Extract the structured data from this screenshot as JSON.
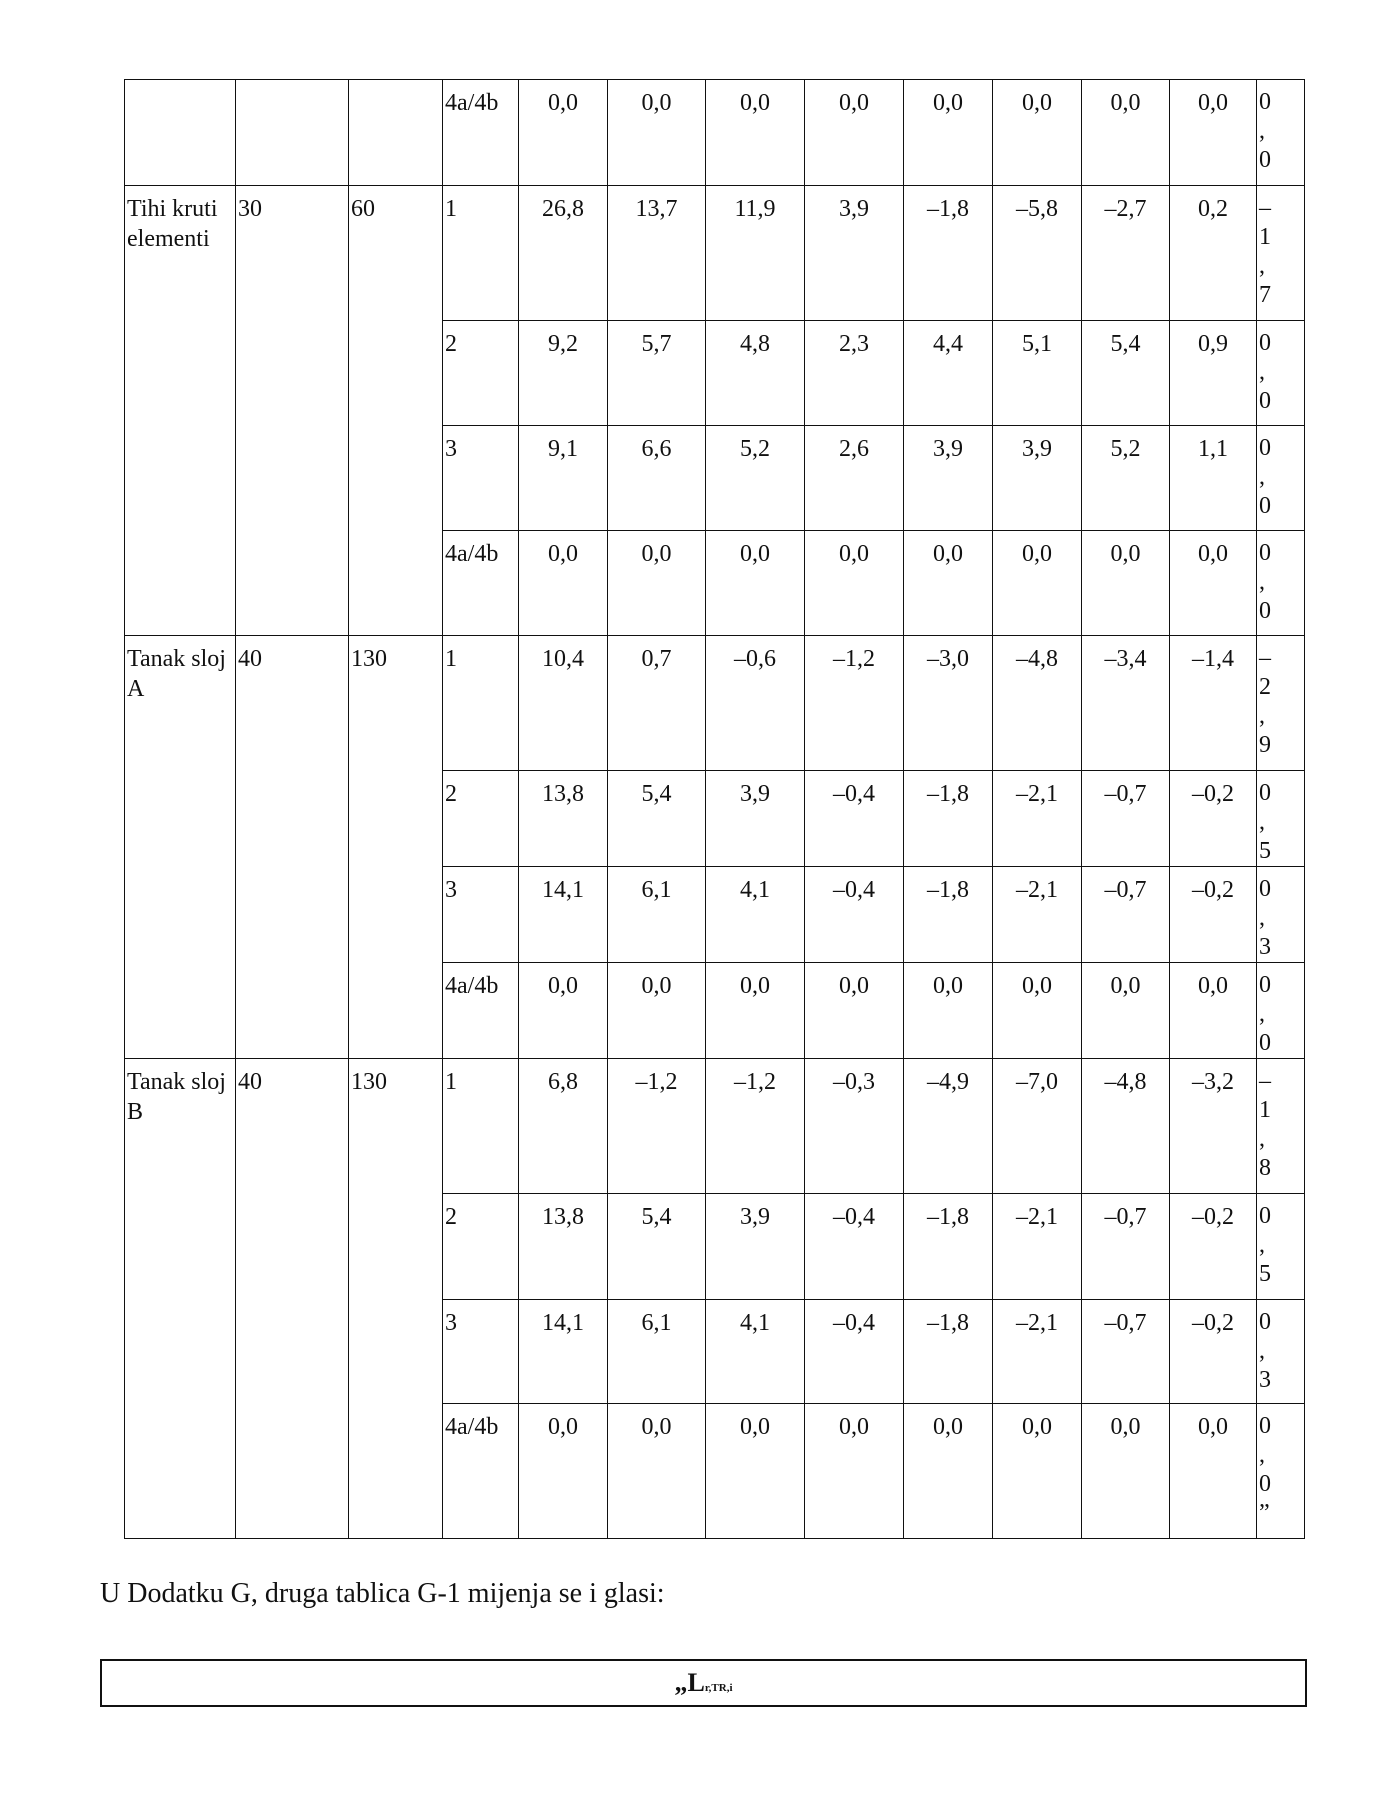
{
  "table": {
    "groups": [
      {
        "name": "",
        "c2": "",
        "c3": "",
        "continuation": true,
        "rows": [
          {
            "k": "4a/4b",
            "v": [
              "0,0",
              "0,0",
              "0,0",
              "0,0",
              "0,0",
              "0,0",
              "0,0",
              "0,0"
            ],
            "last": "0,0"
          }
        ]
      },
      {
        "name": "Tihi kruti elementi",
        "c2": "30",
        "c3": "60",
        "rows": [
          {
            "k": "1",
            "v": [
              "26,8",
              "13,7",
              "11,9",
              "3,9",
              "–1,8",
              "–5,8",
              "–2,7",
              "0,2"
            ],
            "last": "–1,7"
          },
          {
            "k": "2",
            "v": [
              "9,2",
              "5,7",
              "4,8",
              "2,3",
              "4,4",
              "5,1",
              "5,4",
              "0,9"
            ],
            "last": "0,0"
          },
          {
            "k": "3",
            "v": [
              "9,1",
              "6,6",
              "5,2",
              "2,6",
              "3,9",
              "3,9",
              "5,2",
              "1,1"
            ],
            "last": "0,0"
          },
          {
            "k": "4a/4b",
            "v": [
              "0,0",
              "0,0",
              "0,0",
              "0,0",
              "0,0",
              "0,0",
              "0,0",
              "0,0"
            ],
            "last": "0,0"
          }
        ]
      },
      {
        "name": "Tanak sloj A",
        "c2": "40",
        "c3": "130",
        "rows": [
          {
            "k": "1",
            "v": [
              "10,4",
              "0,7",
              "–0,6",
              "–1,2",
              "–3,0",
              "–4,8",
              "–3,4",
              "–1,4"
            ],
            "last": "–2,9"
          },
          {
            "k": "2",
            "v": [
              "13,8",
              "5,4",
              "3,9",
              "–0,4",
              "–1,8",
              "–2,1",
              "–0,7",
              "–0,2"
            ],
            "last": "0,5"
          },
          {
            "k": "3",
            "v": [
              "14,1",
              "6,1",
              "4,1",
              "–0,4",
              "–1,8",
              "–2,1",
              "–0,7",
              "–0,2"
            ],
            "last": "0,3"
          },
          {
            "k": "4a/4b",
            "v": [
              "0,0",
              "0,0",
              "0,0",
              "0,0",
              "0,0",
              "0,0",
              "0,0",
              "0,0"
            ],
            "last": "0,0"
          }
        ]
      },
      {
        "name": "Tanak sloj B",
        "c2": "40",
        "c3": "130",
        "rows": [
          {
            "k": "1",
            "v": [
              "6,8",
              "–1,2",
              "–1,2",
              "–0,3",
              "–4,9",
              "–7,0",
              "–4,8",
              "–3,2"
            ],
            "last": "–1,8"
          },
          {
            "k": "2",
            "v": [
              "13,8",
              "5,4",
              "3,9",
              "–0,4",
              "–1,8",
              "–2,1",
              "–0,7",
              "–0,2"
            ],
            "last": "0,5"
          },
          {
            "k": "3",
            "v": [
              "14,1",
              "6,1",
              "4,1",
              "–0,4",
              "–1,8",
              "–2,1",
              "–0,7",
              "–0,2"
            ],
            "last": "0,3"
          },
          {
            "k": "4a/4b",
            "v": [
              "0,0",
              "0,0",
              "0,0",
              "0,0",
              "0,0",
              "0,0",
              "0,0",
              "0,0"
            ],
            "last": "0,0”"
          }
        ]
      }
    ]
  },
  "note": "U Dodatku G, druga tablica G-1 mijenja se i glasi:",
  "box": {
    "prefix": "„L",
    "subscript": "r,TR,i"
  }
}
